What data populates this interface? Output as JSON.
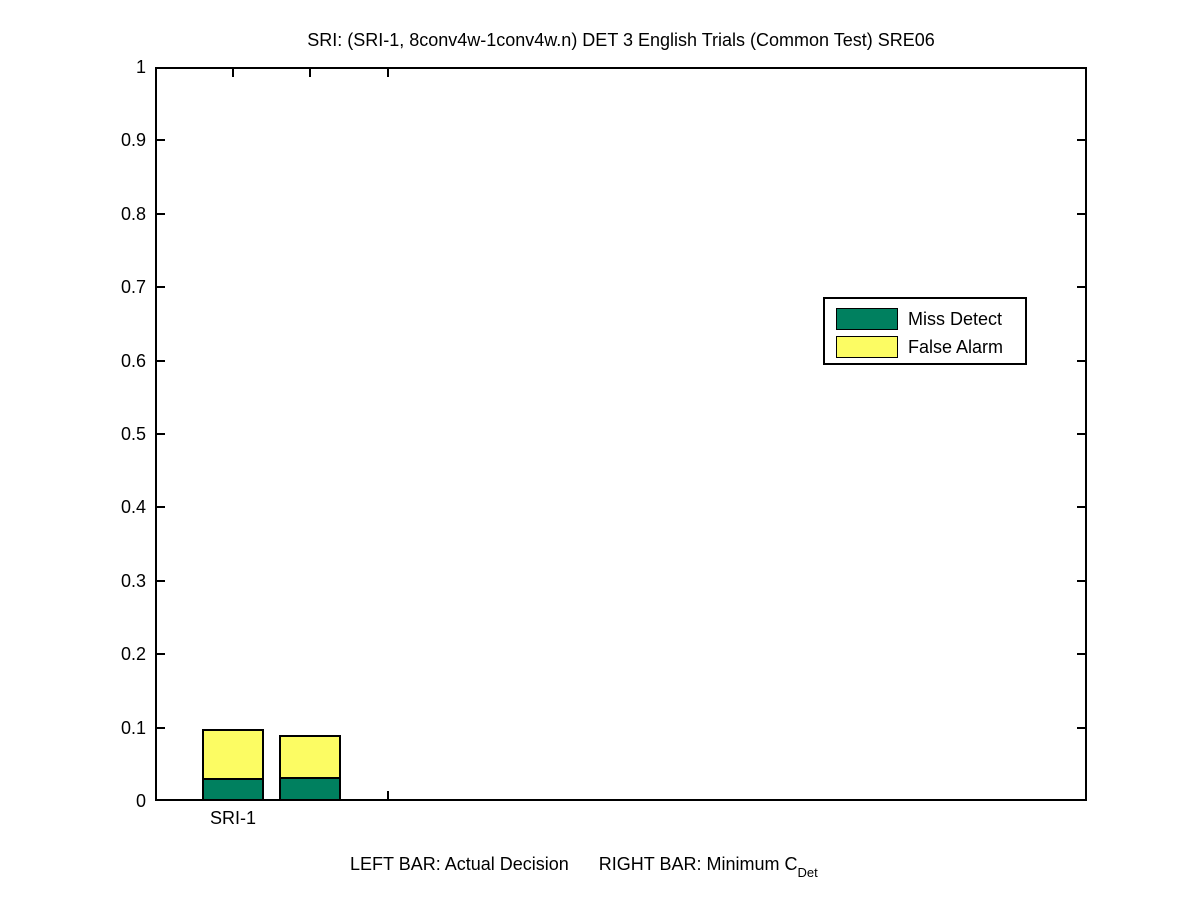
{
  "chart_data": {
    "type": "bar",
    "stacked": true,
    "title": "SRI: (SRI-1, 8conv4w-1conv4w.n) DET 3 English Trials (Common Test) SRE06",
    "categories": [
      "SRI-1"
    ],
    "xlim": [
      0,
      12
    ],
    "xticks": [
      1,
      2,
      3
    ],
    "xtick_label": {
      "text": "SRI-1",
      "at_x": 1
    },
    "ylim": [
      0,
      1
    ],
    "ytick_step": 0.1,
    "ytick_labels": [
      "0",
      "0.1",
      "0.2",
      "0.3",
      "0.4",
      "0.5",
      "0.6",
      "0.7",
      "0.8",
      "0.9",
      "1"
    ],
    "grid": false,
    "bar_width_units": 0.8,
    "bars": [
      {
        "id": "actual-decision",
        "label": "Actual Decision",
        "x_center": 1,
        "miss_detect": 0.028,
        "false_alarm": 0.07,
        "total": 0.098
      },
      {
        "id": "minimum-cdet",
        "label": "Minimum CDet",
        "x_center": 2,
        "miss_detect": 0.03,
        "false_alarm": 0.06,
        "total": 0.09
      }
    ],
    "series_colors": {
      "miss_detect": "#00805F",
      "false_alarm": "#FCFC63"
    },
    "legend": {
      "position": "upper-right",
      "entries": [
        {
          "label": "Miss Detect",
          "color_key": "miss_detect"
        },
        {
          "label": "False Alarm",
          "color_key": "false_alarm"
        }
      ]
    },
    "footer_note": {
      "text": "LEFT BAR: Actual Decision      RIGHT BAR: Minimum C",
      "subscript": "Det"
    },
    "background": "#FFFFFF",
    "axis_color": "#000000"
  }
}
